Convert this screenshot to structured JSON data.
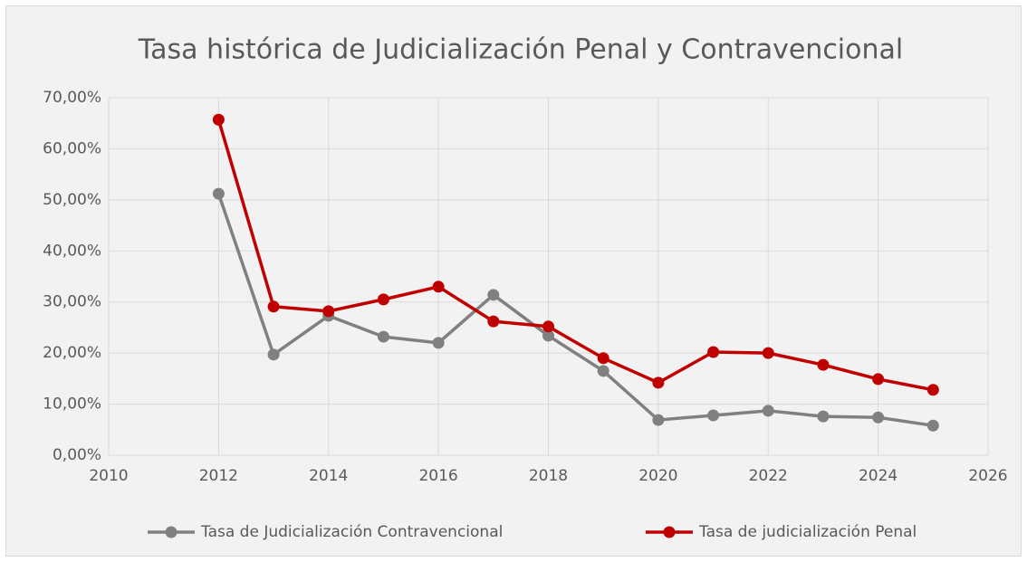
{
  "chart_data": {
    "type": "line",
    "title": "Tasa histórica de Judicialización Penal y Contravencional",
    "x": [
      2012,
      2013,
      2014,
      2015,
      2016,
      2017,
      2018,
      2019,
      2020,
      2021,
      2022,
      2023,
      2024,
      2025
    ],
    "series": [
      {
        "name": "Tasa de Judicialización Contravencional",
        "color": "#808080",
        "values": [
          51.2,
          19.7,
          27.3,
          23.2,
          22.0,
          31.4,
          23.4,
          16.5,
          6.9,
          7.8,
          8.7,
          7.6,
          7.4,
          5.8
        ]
      },
      {
        "name": "Tasa de judicialización Penal",
        "color": "#c00000",
        "values": [
          65.7,
          29.1,
          28.2,
          30.5,
          33.0,
          26.2,
          25.2,
          19.0,
          14.2,
          20.2,
          20.0,
          17.7,
          14.9,
          12.8
        ]
      }
    ],
    "xlim": [
      2010,
      2026
    ],
    "xticks": [
      2010,
      2012,
      2014,
      2016,
      2018,
      2020,
      2022,
      2024,
      2026
    ],
    "ylim": [
      0,
      70
    ],
    "yticks": [
      {
        "value": 0,
        "label": "0,00%"
      },
      {
        "value": 10,
        "label": "10,00%"
      },
      {
        "value": 20,
        "label": "20,00%"
      },
      {
        "value": 30,
        "label": "30,00%"
      },
      {
        "value": 40,
        "label": "40,00%"
      },
      {
        "value": 50,
        "label": "50,00%"
      },
      {
        "value": 60,
        "label": "60,00%"
      },
      {
        "value": 70,
        "label": "70,00%"
      }
    ],
    "grid": true,
    "legend": "bottom"
  }
}
